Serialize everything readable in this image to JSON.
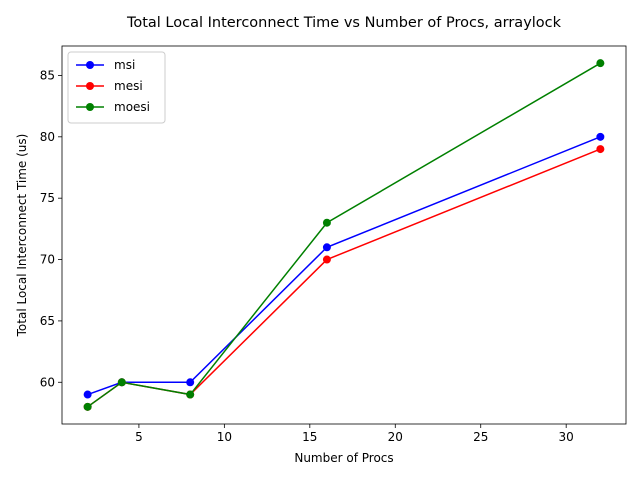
{
  "chart_data": {
    "type": "line",
    "title": "Total Local Interconnect Time vs Number of Procs, arraylock",
    "xlabel": "Number of Procs",
    "ylabel": "Total Local Interconnect Time (us)",
    "x": [
      2,
      4,
      8,
      16,
      32
    ],
    "xlim": [
      0.5,
      33.5
    ],
    "ylim": [
      56.6,
      87.4
    ],
    "xticks": [
      5,
      10,
      15,
      20,
      25,
      30
    ],
    "yticks": [
      60,
      65,
      70,
      75,
      80,
      85
    ],
    "grid": false,
    "legend_position": "upper-left",
    "series": [
      {
        "name": "msi",
        "color": "#0000ff",
        "values": [
          59,
          60,
          60,
          71,
          80
        ]
      },
      {
        "name": "mesi",
        "color": "#ff0000",
        "values": [
          58,
          60,
          59,
          70,
          79
        ]
      },
      {
        "name": "moesi",
        "color": "#008000",
        "values": [
          58,
          60,
          59,
          73,
          86
        ]
      }
    ]
  }
}
